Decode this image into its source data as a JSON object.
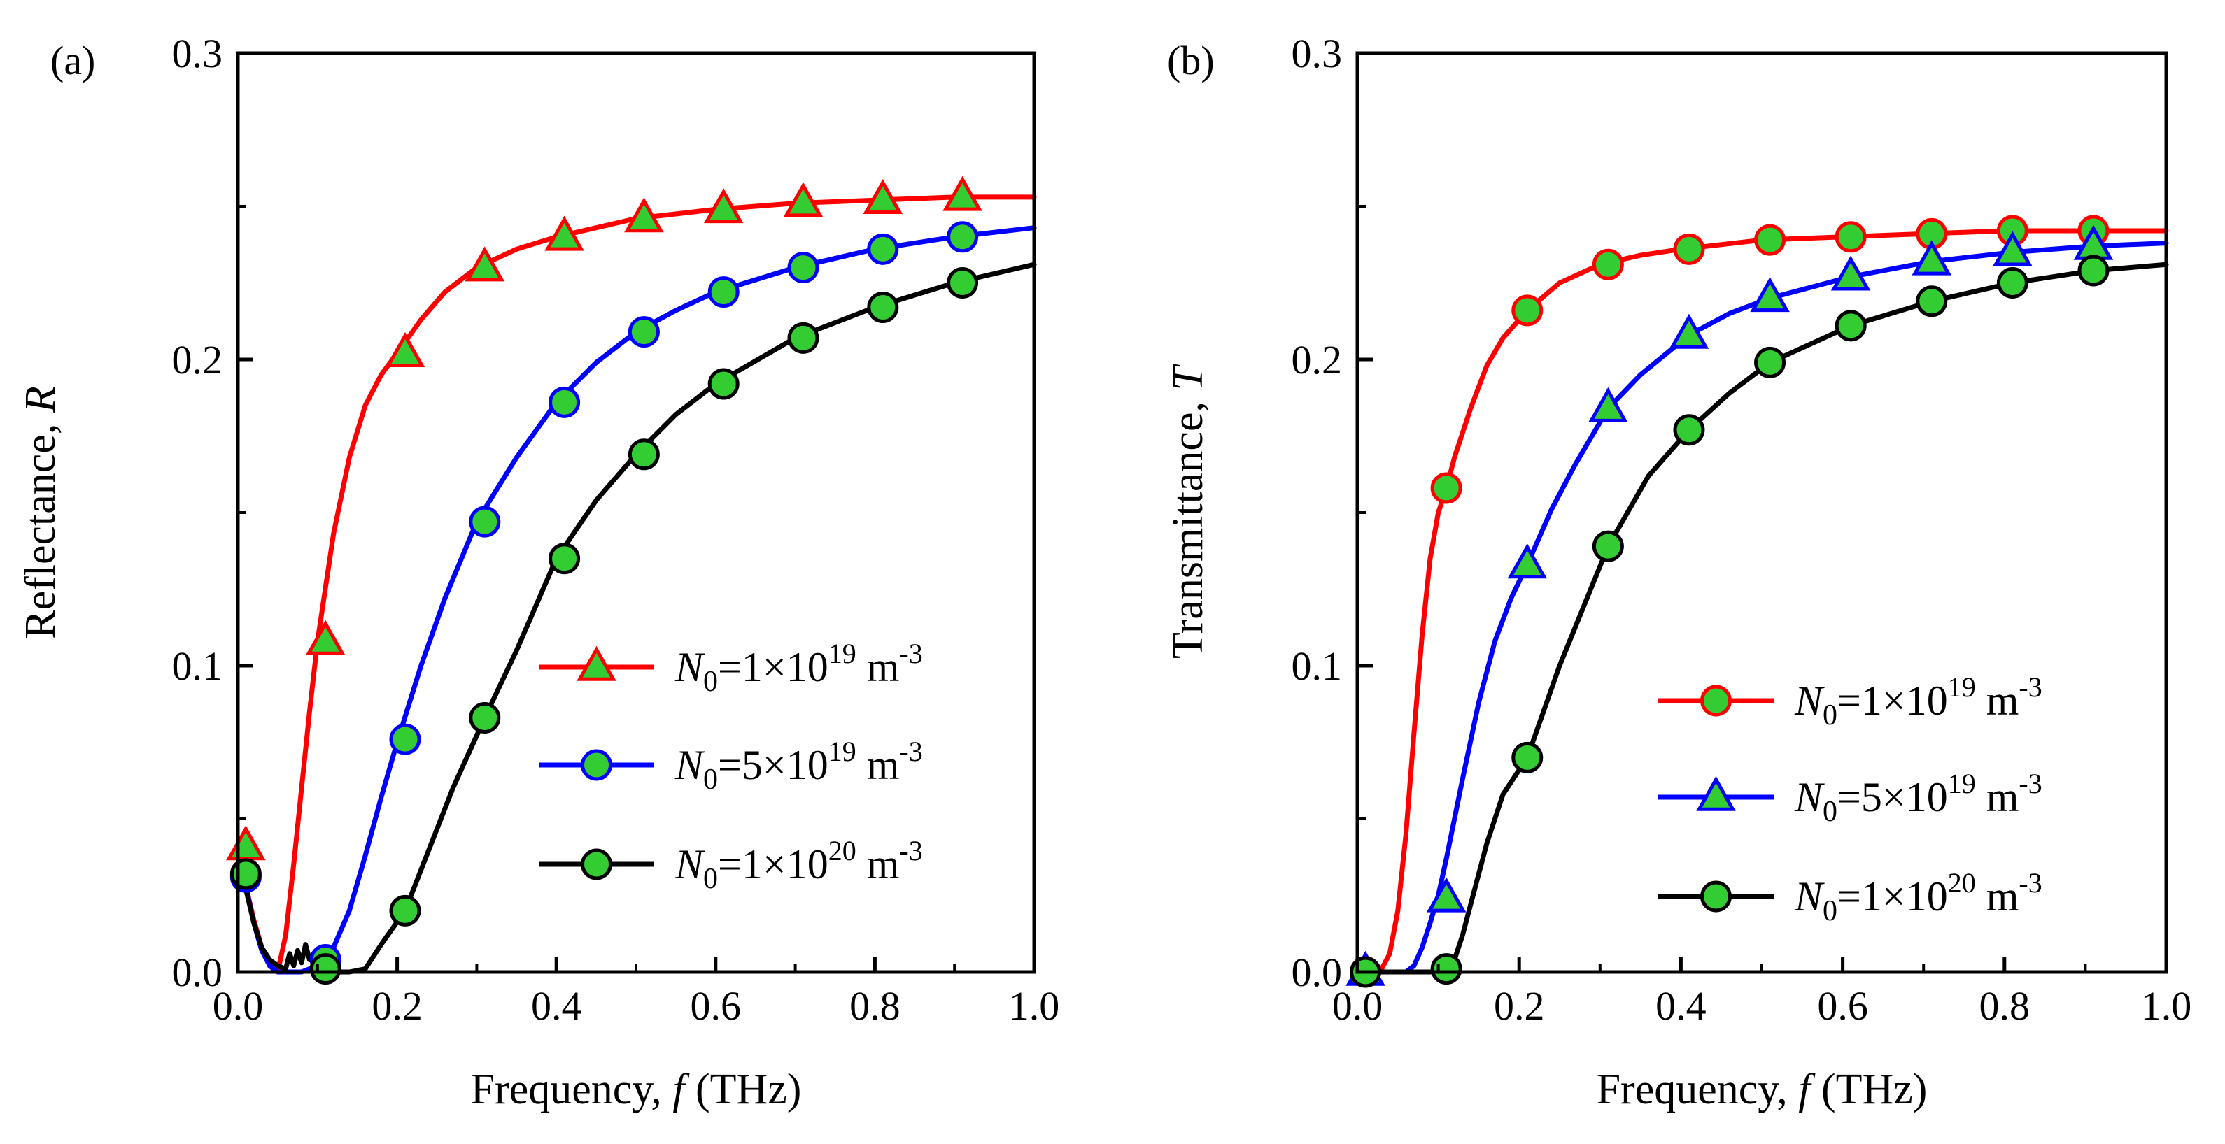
{
  "chart_data": [
    {
      "type": "line",
      "panel_label": "(a)",
      "xlabel": "Frequency, ",
      "xlabel_italic": "f",
      "xlabel_unit": " (THz)",
      "ylabel": "Reflectance, ",
      "ylabel_italic": "R",
      "xlim": [
        0.0,
        1.0
      ],
      "ylim": [
        0.0,
        0.3
      ],
      "xticks": [
        "0.0",
        "0.2",
        "0.4",
        "0.6",
        "0.8",
        "1.0"
      ],
      "yticks": [
        "0.0",
        "0.1",
        "0.2",
        "0.3"
      ],
      "legend_position": "lower-right",
      "series": [
        {
          "name": "N0=1×10^19 m^-3",
          "label_prefix": "N",
          "label_sub": "0",
          "label_base": "=1×10",
          "label_exp": "19",
          "label_unit": " m",
          "label_unit_exp": "-3",
          "color": "#ff0000",
          "marker": "triangle",
          "x": [
            0.0,
            0.01,
            0.02,
            0.03,
            0.04,
            0.05,
            0.06,
            0.07,
            0.08,
            0.09,
            0.1,
            0.12,
            0.14,
            0.16,
            0.18,
            0.2,
            0.23,
            0.26,
            0.3,
            0.35,
            0.4,
            0.45,
            0.5,
            0.6,
            0.7,
            0.8,
            0.9,
            1.0
          ],
          "y": [
            0.034,
            0.028,
            0.017,
            0.008,
            0.002,
            0.0,
            0.012,
            0.035,
            0.06,
            0.085,
            0.108,
            0.143,
            0.168,
            0.185,
            0.195,
            0.202,
            0.213,
            0.222,
            0.23,
            0.236,
            0.24,
            0.243,
            0.246,
            0.249,
            0.251,
            0.252,
            0.253,
            0.253
          ],
          "marker_x": [
            0.01,
            0.11,
            0.21,
            0.31,
            0.41,
            0.51,
            0.61,
            0.71,
            0.81,
            0.91
          ],
          "marker_y": [
            0.041,
            0.108,
            0.202,
            0.23,
            0.24,
            0.246,
            0.249,
            0.251,
            0.252,
            0.253
          ]
        },
        {
          "name": "N0=5×10^19 m^-3",
          "label_prefix": "N",
          "label_sub": "0",
          "label_base": "=5×10",
          "label_exp": "19",
          "label_unit": " m",
          "label_unit_exp": "-3",
          "color": "#0000ff",
          "marker": "circle",
          "x": [
            0.0,
            0.01,
            0.02,
            0.03,
            0.04,
            0.05,
            0.06,
            0.08,
            0.1,
            0.11,
            0.12,
            0.14,
            0.16,
            0.18,
            0.2,
            0.23,
            0.26,
            0.3,
            0.35,
            0.4,
            0.45,
            0.5,
            0.55,
            0.6,
            0.7,
            0.8,
            0.9,
            1.0
          ],
          "y": [
            0.033,
            0.028,
            0.016,
            0.007,
            0.002,
            0.0,
            0.0,
            0.0,
            0.002,
            0.004,
            0.008,
            0.02,
            0.038,
            0.057,
            0.075,
            0.1,
            0.122,
            0.147,
            0.168,
            0.186,
            0.199,
            0.209,
            0.216,
            0.222,
            0.23,
            0.236,
            0.24,
            0.243
          ],
          "marker_x": [
            0.01,
            0.11,
            0.21,
            0.31,
            0.41,
            0.51,
            0.61,
            0.71,
            0.81,
            0.91
          ],
          "marker_y": [
            0.031,
            0.004,
            0.076,
            0.147,
            0.186,
            0.209,
            0.222,
            0.23,
            0.236,
            0.24
          ]
        },
        {
          "name": "N0=1×10^20 m^-3",
          "label_prefix": "N",
          "label_sub": "0",
          "label_base": "=1×10",
          "label_exp": "20",
          "label_unit": " m",
          "label_unit_exp": "-3",
          "color": "#000000",
          "marker": "circle",
          "x": [
            0.0,
            0.01,
            0.02,
            0.03,
            0.04,
            0.05,
            0.06,
            0.065,
            0.07,
            0.075,
            0.08,
            0.085,
            0.09,
            0.095,
            0.1,
            0.12,
            0.14,
            0.16,
            0.18,
            0.21,
            0.24,
            0.27,
            0.31,
            0.35,
            0.4,
            0.45,
            0.5,
            0.55,
            0.6,
            0.7,
            0.8,
            0.9,
            1.0
          ],
          "y": [
            0.032,
            0.027,
            0.016,
            0.008,
            0.004,
            0.002,
            0.001,
            0.006,
            0.002,
            0.007,
            0.003,
            0.009,
            0.004,
            0.006,
            0.002,
            0.0,
            0.0,
            0.001,
            0.009,
            0.02,
            0.04,
            0.06,
            0.083,
            0.105,
            0.135,
            0.154,
            0.169,
            0.182,
            0.192,
            0.207,
            0.217,
            0.225,
            0.231
          ],
          "marker_x": [
            0.01,
            0.11,
            0.21,
            0.31,
            0.41,
            0.51,
            0.61,
            0.71,
            0.81,
            0.91
          ],
          "marker_y": [
            0.032,
            0.001,
            0.02,
            0.083,
            0.135,
            0.169,
            0.192,
            0.207,
            0.217,
            0.225
          ]
        }
      ]
    },
    {
      "type": "line",
      "panel_label": "(b)",
      "xlabel": "Frequency, ",
      "xlabel_italic": "f",
      "xlabel_unit": " (THz)",
      "ylabel": "Transmittance, ",
      "ylabel_italic": "T",
      "xlim": [
        0.0,
        1.0
      ],
      "ylim": [
        0.0,
        0.3
      ],
      "xticks": [
        "0.0",
        "0.2",
        "0.4",
        "0.6",
        "0.8",
        "1.0"
      ],
      "yticks": [
        "0.0",
        "0.1",
        "0.2",
        "0.3"
      ],
      "legend_position": "lower-right",
      "series": [
        {
          "name": "N0=1×10^19 m^-3",
          "label_prefix": "N",
          "label_sub": "0",
          "label_base": "=1×10",
          "label_exp": "19",
          "label_unit": " m",
          "label_unit_exp": "-3",
          "color": "#ff0000",
          "marker": "circle",
          "x": [
            0.0,
            0.02,
            0.03,
            0.04,
            0.05,
            0.06,
            0.07,
            0.08,
            0.09,
            0.1,
            0.11,
            0.12,
            0.14,
            0.16,
            0.18,
            0.21,
            0.25,
            0.3,
            0.35,
            0.4,
            0.5,
            0.6,
            0.7,
            0.8,
            0.9,
            1.0
          ],
          "y": [
            0.0,
            0.0,
            0.001,
            0.006,
            0.02,
            0.045,
            0.078,
            0.11,
            0.135,
            0.15,
            0.158,
            0.168,
            0.184,
            0.198,
            0.207,
            0.216,
            0.225,
            0.231,
            0.234,
            0.236,
            0.239,
            0.24,
            0.241,
            0.242,
            0.242,
            0.242
          ],
          "marker_x": [
            0.01,
            0.11,
            0.21,
            0.31,
            0.41,
            0.51,
            0.61,
            0.71,
            0.81,
            0.91
          ],
          "marker_y": [
            0.0,
            0.158,
            0.216,
            0.231,
            0.236,
            0.239,
            0.24,
            0.241,
            0.242,
            0.242
          ]
        },
        {
          "name": "N0=5×10^19 m^-3",
          "label_prefix": "N",
          "label_sub": "0",
          "label_base": "=5×10",
          "label_exp": "19",
          "label_unit": " m",
          "label_unit_exp": "-3",
          "color": "#0000ff",
          "marker": "triangle",
          "x": [
            0.0,
            0.04,
            0.06,
            0.07,
            0.08,
            0.09,
            0.1,
            0.11,
            0.13,
            0.15,
            0.17,
            0.19,
            0.21,
            0.24,
            0.27,
            0.31,
            0.35,
            0.41,
            0.46,
            0.51,
            0.61,
            0.71,
            0.81,
            0.91,
            1.0
          ],
          "y": [
            0.0,
            0.0,
            0.0,
            0.002,
            0.008,
            0.016,
            0.025,
            0.037,
            0.063,
            0.088,
            0.108,
            0.122,
            0.133,
            0.151,
            0.166,
            0.184,
            0.195,
            0.208,
            0.215,
            0.22,
            0.227,
            0.232,
            0.235,
            0.237,
            0.238
          ],
          "marker_x": [
            0.01,
            0.11,
            0.21,
            0.31,
            0.41,
            0.51,
            0.61,
            0.71,
            0.81,
            0.91
          ],
          "marker_y": [
            0.0,
            0.024,
            0.133,
            0.184,
            0.208,
            0.22,
            0.227,
            0.232,
            0.235,
            0.237
          ]
        },
        {
          "name": "N0=1×10^20 m^-3",
          "label_prefix": "N",
          "label_sub": "0",
          "label_base": "=1×10",
          "label_exp": "20",
          "label_unit": " m",
          "label_unit_exp": "-3",
          "color": "#000000",
          "marker": "circle",
          "x": [
            0.0,
            0.08,
            0.1,
            0.11,
            0.12,
            0.13,
            0.14,
            0.16,
            0.18,
            0.21,
            0.25,
            0.31,
            0.36,
            0.41,
            0.46,
            0.51,
            0.61,
            0.71,
            0.81,
            0.91,
            1.0
          ],
          "y": [
            0.0,
            0.0,
            0.0,
            0.001,
            0.004,
            0.012,
            0.022,
            0.042,
            0.058,
            0.07,
            0.1,
            0.139,
            0.162,
            0.177,
            0.189,
            0.199,
            0.211,
            0.219,
            0.225,
            0.229,
            0.231
          ],
          "marker_x": [
            0.01,
            0.11,
            0.21,
            0.31,
            0.41,
            0.51,
            0.61,
            0.71,
            0.81,
            0.91
          ],
          "marker_y": [
            0.0,
            0.001,
            0.07,
            0.139,
            0.177,
            0.199,
            0.211,
            0.219,
            0.225,
            0.229
          ]
        }
      ]
    }
  ],
  "colors": {
    "marker_fill": "#33cc33",
    "axis": "#000000"
  }
}
